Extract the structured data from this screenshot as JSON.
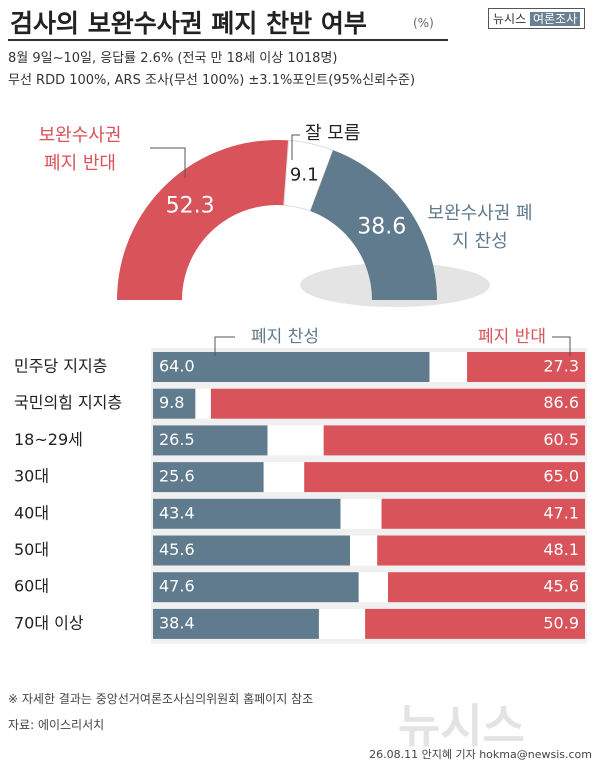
{
  "header": {
    "title": "검사의 보완수사권 폐지 찬반 여부",
    "unit": "(%)",
    "brand": "뉴시스",
    "brand_tag": "여론조사",
    "subtitle_lines": [
      "8월 9일~10일, 응답률 2.6% (전국 만 18세 이상 1018명)",
      "무선 RDD 100%, ARS 조사(무선 100%) ±3.1%포인트(95%신뢰수준)"
    ]
  },
  "chart_data": [
    {
      "type": "half-donut",
      "categories": [
        "보완수사권 폐지 반대",
        "잘 모름",
        "보완수사권 폐지 찬성"
      ],
      "values": [
        52.3,
        9.1,
        38.6
      ],
      "colors": [
        "#d9535a",
        "#ffffff",
        "#5f7b8d"
      ]
    },
    {
      "type": "stacked-bar-h",
      "categories": [
        "민주당 지지층",
        "국민의힘 지지층",
        "18~29세",
        "30대",
        "40대",
        "50대",
        "60대",
        "70대 이상"
      ],
      "xlim": [
        0,
        100
      ],
      "series": [
        {
          "name": "폐지 찬성",
          "color": "#5f7b8d",
          "values": [
            64.0,
            9.8,
            26.5,
            25.6,
            43.4,
            45.6,
            47.6,
            38.4
          ],
          "value_labels": [
            "64.0",
            "9.8",
            "26.5",
            "25.6",
            "43.4",
            "45.6",
            "47.6",
            "38.4"
          ]
        },
        {
          "name": "폐지 반대",
          "color": "#d9535a",
          "values": [
            27.3,
            86.6,
            60.5,
            65.0,
            47.1,
            48.1,
            45.6,
            50.9
          ],
          "value_labels": [
            "27.3",
            "86.6",
            "60.5",
            "65.0",
            "47.1",
            "48.1",
            "45.6",
            "50.9"
          ]
        }
      ]
    }
  ],
  "footer": {
    "note": "※ 자세한 결과는 중앙선거여론조사심의위원회 홈페이지 참조",
    "source": "자료: 에이스리서치",
    "credit": "26.08.11 안지혜 기자 hokma@newsis.com",
    "watermark": "뉴시스"
  }
}
